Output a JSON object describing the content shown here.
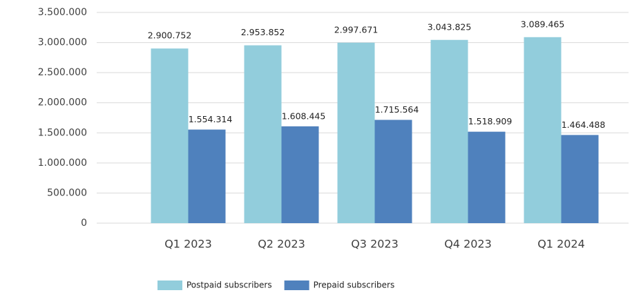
{
  "chart_data": {
    "type": "bar",
    "categories": [
      "Q1 2023",
      "Q2 2023",
      "Q3 2023",
      "Q4 2023",
      "Q1 2024"
    ],
    "series": [
      {
        "name": "Postpaid subscribers",
        "color": "#92cddc",
        "values": [
          2900752,
          2953852,
          2997671,
          3043825,
          3089465
        ],
        "value_labels": [
          "2.900.752",
          "2.953.852",
          "2.997.671",
          "3.043.825",
          "3.089.465"
        ]
      },
      {
        "name": "Prepaid subscribers",
        "color": "#4f81bd",
        "values": [
          1554314,
          1608445,
          1715564,
          1518909,
          1464488
        ],
        "value_labels": [
          "1.554.314",
          "1.608.445",
          "1.715.564",
          "1.518.909",
          "1.464.488"
        ]
      }
    ],
    "ylim": [
      0,
      3500000
    ],
    "yticks": [
      0,
      {
        "value": 500000,
        "label": "500.000"
      },
      {
        "value": 1000000,
        "label": "1.000.000"
      },
      {
        "value": 1500000,
        "label": "1.500.000"
      },
      {
        "value": 2000000,
        "label": "2.000.000"
      },
      {
        "value": 2500000,
        "label": "2.500.000"
      },
      {
        "value": 3000000,
        "label": "3.000.000"
      },
      {
        "value": 3500000,
        "label": "3.500.000"
      }
    ],
    "grid": true,
    "legend": "bottom"
  }
}
